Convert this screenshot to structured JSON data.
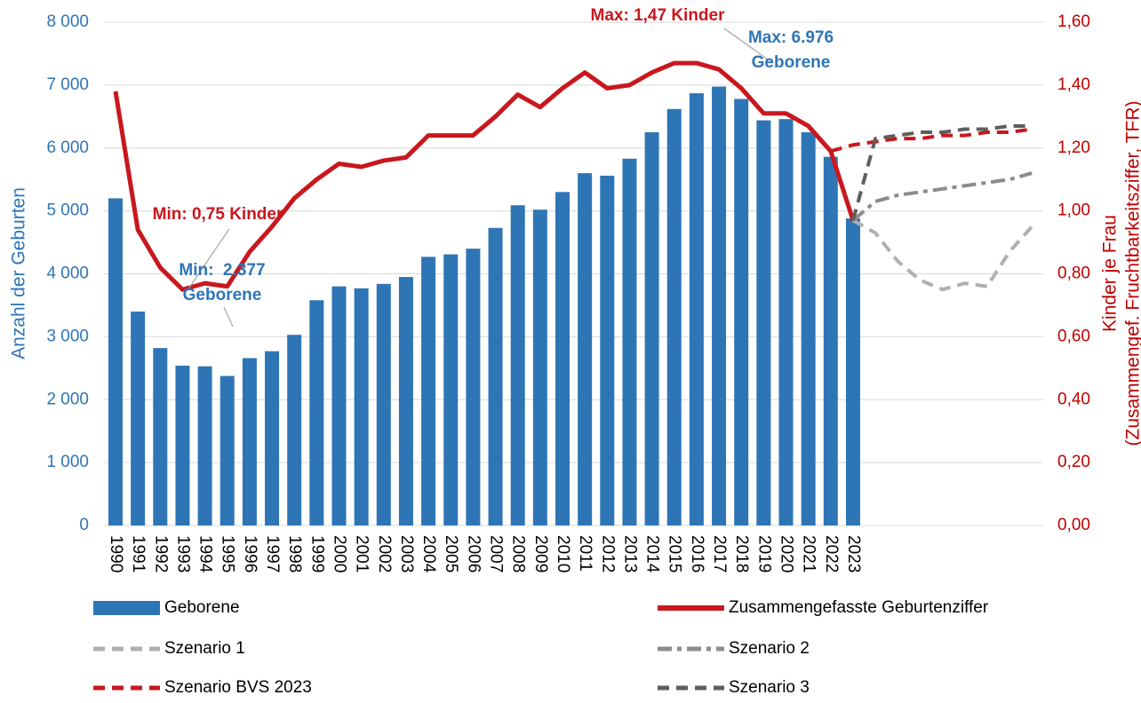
{
  "chart_data": {
    "type": "combo",
    "y_label": "Anzahl der Geburten",
    "y2_label": [
      "Kinder je Frau",
      "(Zusammengef. Fruchtbarkeitsziffer, TFR)"
    ],
    "categories": [
      "1990",
      "1991",
      "1992",
      "1993",
      "1994",
      "1995",
      "1996",
      "1997",
      "1998",
      "1999",
      "2000",
      "2001",
      "2002",
      "2003",
      "2004",
      "2005",
      "2006",
      "2007",
      "2008",
      "2009",
      "2010",
      "2011",
      "2012",
      "2013",
      "2014",
      "2015",
      "2016",
      "2017",
      "2018",
      "2019",
      "2020",
      "2021",
      "2022",
      "2023",
      null,
      null,
      null,
      null,
      null,
      null,
      null,
      null
    ],
    "ylim": [
      0,
      8000
    ],
    "yticks": [
      0,
      {
        "value": 1000,
        "label": "1 000"
      },
      {
        "value": 2000,
        "label": "2 000"
      },
      {
        "value": 3000,
        "label": "3 000"
      },
      {
        "value": 4000,
        "label": "4 000"
      },
      {
        "value": 5000,
        "label": "5 000"
      },
      {
        "value": 6000,
        "label": "6 000"
      },
      {
        "value": 7000,
        "label": "7 000"
      },
      {
        "value": 8000,
        "label": "8 000"
      }
    ],
    "y2lim": [
      0,
      1.6
    ],
    "y2ticks": [
      {
        "value": 0,
        "label": "0,00"
      },
      {
        "value": 0.2,
        "label": "0,20"
      },
      {
        "value": 0.4,
        "label": "0,40"
      },
      {
        "value": 0.6,
        "label": "0,60"
      },
      {
        "value": 0.8,
        "label": "0,80"
      },
      {
        "value": 1.0,
        "label": "1,00"
      },
      {
        "value": 1.2,
        "label": "1,20"
      },
      {
        "value": 1.4,
        "label": "1,40"
      },
      {
        "value": 1.6,
        "label": "1,60"
      }
    ],
    "grid": true,
    "y_color": "#2e75b6",
    "y2_color": "#c00000",
    "series": [
      {
        "name": "Geborene",
        "type": "bar",
        "color": "#2e75b6",
        "values": [
          5200,
          3400,
          2820,
          2540,
          2530,
          2377,
          2660,
          2770,
          3030,
          3580,
          3800,
          3770,
          3840,
          3950,
          4270,
          4310,
          4400,
          4730,
          5090,
          5020,
          5300,
          5600,
          5560,
          5830,
          6250,
          6620,
          6870,
          6976,
          6780,
          6440,
          6460,
          6250,
          5860,
          4880,
          null,
          null,
          null,
          null,
          null,
          null,
          null,
          null
        ]
      },
      {
        "name": "Zusammengefasste Geburtenziffer",
        "type": "line",
        "axis": "y2",
        "color": "#c9171e",
        "line_style": "solid",
        "values": [
          1.38,
          0.94,
          0.82,
          0.75,
          0.77,
          0.76,
          0.87,
          0.95,
          1.04,
          1.1,
          1.15,
          1.14,
          1.16,
          1.17,
          1.24,
          1.24,
          1.24,
          1.3,
          1.37,
          1.33,
          1.39,
          1.44,
          1.39,
          1.4,
          1.44,
          1.47,
          1.47,
          1.45,
          1.39,
          1.31,
          1.31,
          1.27,
          1.19,
          0.97,
          null,
          null,
          null,
          null,
          null,
          null,
          null,
          null
        ]
      },
      {
        "name": "Szenario 1",
        "type": "line",
        "axis": "y2",
        "color": "#b0b0b0",
        "line_style": "dashed",
        "values": [
          null,
          null,
          null,
          null,
          null,
          null,
          null,
          null,
          null,
          null,
          null,
          null,
          null,
          null,
          null,
          null,
          null,
          null,
          null,
          null,
          null,
          null,
          null,
          null,
          null,
          null,
          null,
          null,
          null,
          null,
          null,
          null,
          null,
          0.97,
          0.93,
          0.84,
          0.78,
          0.75,
          0.77,
          0.76,
          0.87,
          0.95
        ]
      },
      {
        "name": "Szenario 2",
        "type": "line",
        "axis": "y2",
        "color": "#8c8c8c",
        "line_style": "dash-dot",
        "values": [
          null,
          null,
          null,
          null,
          null,
          null,
          null,
          null,
          null,
          null,
          null,
          null,
          null,
          null,
          null,
          null,
          null,
          null,
          null,
          null,
          null,
          null,
          null,
          null,
          null,
          null,
          null,
          null,
          null,
          null,
          null,
          null,
          null,
          0.97,
          1.03,
          1.05,
          1.06,
          1.07,
          1.08,
          1.09,
          1.1,
          1.12
        ]
      },
      {
        "name": "Szenario BVS 2023",
        "type": "line",
        "axis": "y2",
        "color": "#c9171e",
        "line_style": "dashed",
        "values": [
          null,
          null,
          null,
          null,
          null,
          null,
          null,
          null,
          null,
          null,
          null,
          null,
          null,
          null,
          null,
          null,
          null,
          null,
          null,
          null,
          null,
          null,
          null,
          null,
          null,
          null,
          null,
          null,
          null,
          null,
          null,
          null,
          1.19,
          1.21,
          1.22,
          1.23,
          1.23,
          1.24,
          1.24,
          1.25,
          1.25,
          1.26
        ]
      },
      {
        "name": "Szenario 3",
        "type": "line",
        "axis": "y2",
        "color": "#5e5e5e",
        "line_style": "dashed",
        "values": [
          null,
          null,
          null,
          null,
          null,
          null,
          null,
          null,
          null,
          null,
          null,
          null,
          null,
          null,
          null,
          null,
          null,
          null,
          null,
          null,
          null,
          null,
          null,
          null,
          null,
          null,
          null,
          null,
          null,
          null,
          null,
          null,
          null,
          0.97,
          1.23,
          1.24,
          1.25,
          1.25,
          1.26,
          1.26,
          1.27,
          1.27
        ]
      }
    ],
    "annotations": [
      {
        "lines": [
          "Max: 1,47 Kinder"
        ],
        "color": "#c9171e"
      },
      {
        "lines": [
          "Max: 6.976",
          "Geborene"
        ],
        "color": "#2e75b6"
      },
      {
        "lines": [
          "Min: 0,75 Kinder"
        ],
        "color": "#c9171e"
      },
      {
        "lines": [
          "Min:  2.377",
          "Geborene"
        ],
        "color": "#2e75b6"
      }
    ]
  }
}
